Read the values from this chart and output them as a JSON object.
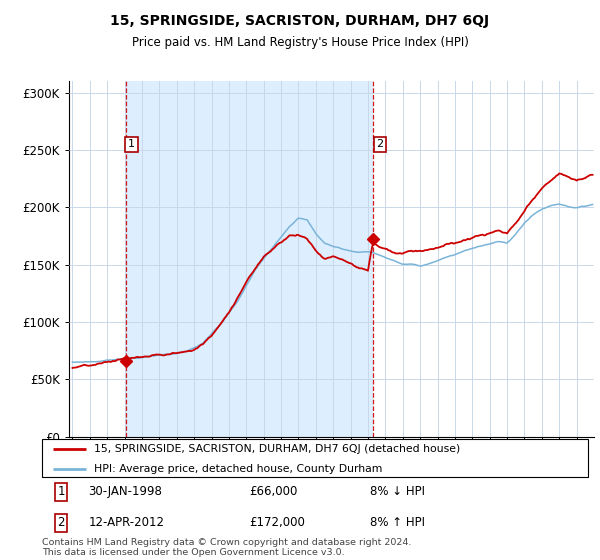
{
  "title": "15, SPRINGSIDE, SACRISTON, DURHAM, DH7 6QJ",
  "subtitle": "Price paid vs. HM Land Registry's House Price Index (HPI)",
  "ylim": [
    0,
    310000
  ],
  "yticks": [
    0,
    50000,
    100000,
    150000,
    200000,
    250000,
    300000
  ],
  "ytick_labels": [
    "£0",
    "£50K",
    "£100K",
    "£150K",
    "£200K",
    "£250K",
    "£300K"
  ],
  "legend_entry1": "15, SPRINGSIDE, SACRISTON, DURHAM, DH7 6QJ (detached house)",
  "legend_entry2": "HPI: Average price, detached house, County Durham",
  "transaction1_date": "30-JAN-1998",
  "transaction1_price": "£66,000",
  "transaction1_hpi": "8% ↓ HPI",
  "transaction2_date": "12-APR-2012",
  "transaction2_price": "£172,000",
  "transaction2_hpi": "8% ↑ HPI",
  "footer": "Contains HM Land Registry data © Crown copyright and database right 2024.\nThis data is licensed under the Open Government Licence v3.0.",
  "hpi_color": "#7ab4d8",
  "price_color": "#cc0000",
  "vline_color": "#cc0000",
  "grid_color": "#c8d8e8",
  "shade_color": "#ddeeff",
  "background_color": "#ffffff"
}
